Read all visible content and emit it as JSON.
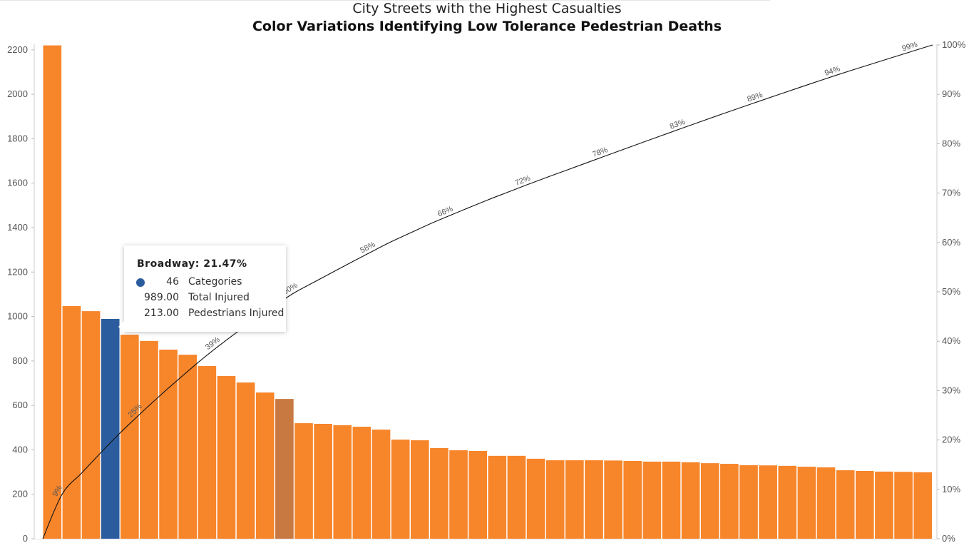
{
  "chart_data": {
    "type": "bar",
    "title": "City Streets with the Highest Casualties",
    "subtitle": "Color Variations Identifying Low Tolerance Pedestrian Deaths",
    "xlabel": "",
    "ylabel": "",
    "ylim": [
      0,
      2222
    ],
    "y_ticks": [
      "0",
      "200",
      "400",
      "600",
      "800",
      "1000",
      "1200",
      "1400",
      "1600",
      "1800",
      "2000",
      "2200"
    ],
    "y2_ticks": [
      "0%",
      "10%",
      "20%",
      "30%",
      "40%",
      "50%",
      "60%",
      "70%",
      "80%",
      "90%",
      "100%"
    ],
    "values": [
      2220,
      1047,
      1024,
      989,
      918,
      890,
      851,
      828,
      777,
      732,
      703,
      658,
      629,
      520,
      517,
      511,
      504,
      491,
      446,
      443,
      408,
      398,
      395,
      373,
      373,
      360,
      353,
      353,
      353,
      352,
      350,
      347,
      347,
      344,
      340,
      337,
      331,
      330,
      328,
      324,
      321,
      308,
      305,
      302,
      301,
      299
    ],
    "highlight": {
      "3": "#2b5c9e",
      "12": "#c87941"
    },
    "bar_color": "#f7852a",
    "line_labels": [
      "9%",
      "25%",
      "39%",
      "50%",
      "58%",
      "66%",
      "72%",
      "78%",
      "83%",
      "89%",
      "94%",
      "99%"
    ],
    "grid": false
  },
  "tooltip": {
    "title": "Broadway: 21.47%",
    "rows": [
      {
        "value": "46",
        "label": "Categories"
      },
      {
        "value": "989.00",
        "label": "Total Injured"
      },
      {
        "value": "213.00",
        "label": "Pedestrians Injured"
      }
    ],
    "dot_color": "#2b5c9e"
  }
}
